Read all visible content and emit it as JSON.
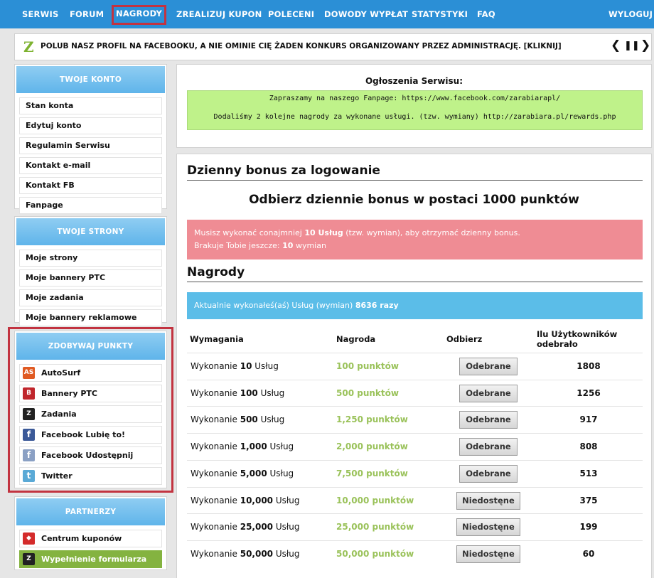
{
  "nav": {
    "items": [
      "SERWIS",
      "FORUM",
      "NAGRODY",
      "ZREALIZUJ KUPON",
      "POLECENI",
      "DOWODY WYPŁAT",
      "STATYSTYKI",
      "FAQ"
    ],
    "logout": "WYLOGUJ"
  },
  "ticker": {
    "logo": "Z",
    "message": "POLUB NASZ PROFIL NA FACEBOOKU, A NIE OMINIE CIĘ ŻADEN KONKURS ORGANIZOWANY PRZEZ ADMINISTRACJĘ. [KLIKNIJ]",
    "prev": "❮",
    "pause": "❚❚",
    "next": "❯"
  },
  "sidebar": {
    "account": {
      "title": "TWOJE KONTO",
      "items": [
        "Stan konta",
        "Edytuj konto",
        "Regulamin Serwisu",
        "Kontakt e-mail",
        "Kontakt FB",
        "Fanpage"
      ]
    },
    "pages": {
      "title": "TWOJE STRONY",
      "items": [
        "Moje strony",
        "Moje bannery PTC",
        "Moje zadania",
        "Moje bannery reklamowe"
      ]
    },
    "points": {
      "title": "ZDOBYWAJ PUNKTY",
      "items": [
        {
          "label": "AutoSurf",
          "glyph": "AS",
          "color": "#e05a22",
          "icon": "autosurf-icon"
        },
        {
          "label": "Bannery PTC",
          "glyph": "B",
          "color": "#c0262c",
          "icon": "banner-icon"
        },
        {
          "label": "Zadania",
          "glyph": "Z",
          "color": "#222222",
          "icon": "tasks-icon"
        },
        {
          "label": "Facebook Lubię to!",
          "glyph": "f",
          "color": "#3b5998",
          "icon": "facebook-icon"
        },
        {
          "label": "Facebook Udostępnij",
          "glyph": "f",
          "color": "#8aa0c4",
          "icon": "share-icon"
        },
        {
          "label": "Twitter",
          "glyph": "t",
          "color": "#5aa9d6",
          "icon": "twitter-icon"
        }
      ]
    },
    "partners": {
      "title": "PARTNERZY",
      "items": [
        {
          "label": "Centrum kuponów",
          "glyph": "◆",
          "color": "#d42b2b",
          "icon": "coupon-icon"
        },
        {
          "label": "Wypełnienie formularza",
          "glyph": "Z",
          "color": "#222222",
          "icon": "form-icon"
        }
      ]
    }
  },
  "announce": {
    "title": "Ogłoszenia Serwisu:",
    "line1": "Zapraszamy na naszego Fanpage: https://www.facebook.com/zarabiarapl/",
    "line2": "Dodaliśmy 2 kolejne nagrody za wykonane usługi. (tzw. wymiany) http://zarabiara.pl/rewards.php"
  },
  "bonus": {
    "heading": "Dzienny bonus za logowanie",
    "headline": "Odbierz dziennie bonus w postaci 1000 punktów",
    "req_pre": "Musisz wykonać conajmniej ",
    "req_bold": "10 Usług",
    "req_post": " (tzw. wymian), aby otrzymać dzienny bonus.",
    "left_pre": "Brakuje Tobie jeszcze: ",
    "left_bold": "10",
    "left_post": " wymian"
  },
  "rewards": {
    "heading": "Nagrody",
    "current_pre": "Aktualnie wykonałeś(aś) Usług (wymian) ",
    "current_bold": "8636 razy",
    "headers": {
      "req": "Wymagania",
      "reward": "Nagroda",
      "claim": "Odbierz",
      "users": "Ilu Użytkowników odebrało"
    },
    "rows": [
      {
        "pre": "Wykonanie ",
        "num": "10",
        "post": " Usług",
        "reward": "100 punktów",
        "status": "Odebrane",
        "taken": true,
        "users": "1808"
      },
      {
        "pre": "Wykonanie ",
        "num": "100",
        "post": " Usług",
        "reward": "500 punktów",
        "status": "Odebrane",
        "taken": true,
        "users": "1256"
      },
      {
        "pre": "Wykonanie ",
        "num": "500",
        "post": " Usług",
        "reward": "1,250 punktów",
        "status": "Odebrane",
        "taken": true,
        "users": "917"
      },
      {
        "pre": "Wykonanie ",
        "num": "1,000",
        "post": " Usług",
        "reward": "2,000 punktów",
        "status": "Odebrane",
        "taken": true,
        "users": "808"
      },
      {
        "pre": "Wykonanie ",
        "num": "5,000",
        "post": " Usług",
        "reward": "7,500 punktów",
        "status": "Odebrane",
        "taken": true,
        "users": "513"
      },
      {
        "pre": "Wykonanie ",
        "num": "10,000",
        "post": " Usług",
        "reward": "10,000 punktów",
        "status": "Niedostęne",
        "taken": false,
        "users": "375"
      },
      {
        "pre": "Wykonanie ",
        "num": "25,000",
        "post": " Usług",
        "reward": "25,000 punktów",
        "status": "Niedostęne",
        "taken": false,
        "users": "199"
      },
      {
        "pre": "Wykonanie ",
        "num": "50,000",
        "post": " Usług",
        "reward": "50,000 punktów",
        "status": "Niedostęne",
        "taken": false,
        "users": "60"
      }
    ]
  }
}
